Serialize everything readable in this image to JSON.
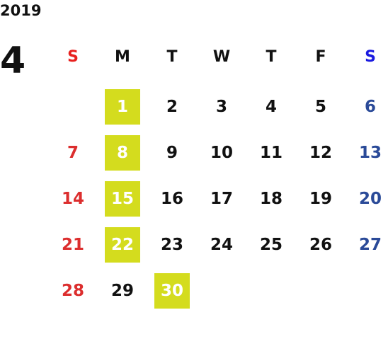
{
  "year": "2019",
  "month": "4",
  "weekdays": [
    "S",
    "M",
    "T",
    "W",
    "T",
    "F",
    "S"
  ],
  "weeks": [
    [
      null,
      {
        "day": "1",
        "highlight": true
      },
      {
        "day": "2",
        "highlight": false
      },
      {
        "day": "3",
        "highlight": false
      },
      {
        "day": "4",
        "highlight": false
      },
      {
        "day": "5",
        "highlight": false
      },
      {
        "day": "6",
        "highlight": false
      }
    ],
    [
      {
        "day": "7",
        "highlight": false
      },
      {
        "day": "8",
        "highlight": true
      },
      {
        "day": "9",
        "highlight": false
      },
      {
        "day": "10",
        "highlight": false
      },
      {
        "day": "11",
        "highlight": false
      },
      {
        "day": "12",
        "highlight": false
      },
      {
        "day": "13",
        "highlight": false
      }
    ],
    [
      {
        "day": "14",
        "highlight": false
      },
      {
        "day": "15",
        "highlight": true
      },
      {
        "day": "16",
        "highlight": false
      },
      {
        "day": "17",
        "highlight": false
      },
      {
        "day": "18",
        "highlight": false
      },
      {
        "day": "19",
        "highlight": false
      },
      {
        "day": "20",
        "highlight": false
      }
    ],
    [
      {
        "day": "21",
        "highlight": false
      },
      {
        "day": "22",
        "highlight": true
      },
      {
        "day": "23",
        "highlight": false
      },
      {
        "day": "24",
        "highlight": false
      },
      {
        "day": "25",
        "highlight": false
      },
      {
        "day": "26",
        "highlight": false
      },
      {
        "day": "27",
        "highlight": false
      }
    ],
    [
      {
        "day": "28",
        "highlight": false
      },
      {
        "day": "29",
        "highlight": false
      },
      {
        "day": "30",
        "highlight": true
      },
      null,
      null,
      null,
      null
    ]
  ]
}
